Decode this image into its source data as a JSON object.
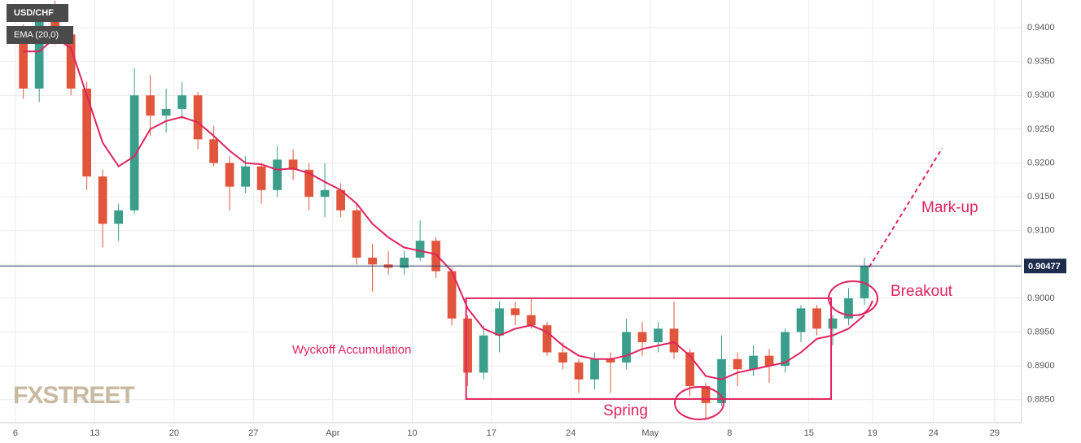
{
  "chart_data": {
    "type": "candlestick",
    "series": [
      {
        "name": "USD/CHF",
        "up_color": "#3a9e8b",
        "down_color": "#e0553c",
        "open": [
          0.939,
          0.931,
          0.942,
          0.939,
          0.931,
          0.918,
          0.911,
          0.913,
          0.93,
          0.927,
          0.928,
          0.93,
          0.9235,
          0.92,
          0.9165,
          0.9195,
          0.916,
          0.9205,
          0.919,
          0.915,
          0.916,
          0.913,
          0.906,
          0.905,
          0.9045,
          0.906,
          0.9085,
          0.904,
          0.897,
          0.889,
          0.8945,
          0.8985,
          0.8975,
          0.896,
          0.892,
          0.8905,
          0.888,
          0.891,
          0.8905,
          0.895,
          0.8935,
          0.8955,
          0.892,
          0.887,
          0.8845,
          0.891,
          0.8895,
          0.8915,
          0.89,
          0.895,
          0.8985,
          0.8955,
          0.897,
          0.9
        ],
        "high": [
          0.9405,
          0.9435,
          0.944,
          0.9395,
          0.932,
          0.919,
          0.914,
          0.934,
          0.933,
          0.931,
          0.932,
          0.9305,
          0.9255,
          0.921,
          0.921,
          0.92,
          0.9225,
          0.922,
          0.92,
          0.92,
          0.917,
          0.914,
          0.908,
          0.907,
          0.907,
          0.9115,
          0.909,
          0.9045,
          0.8975,
          0.896,
          0.8995,
          0.8995,
          0.9,
          0.8965,
          0.8935,
          0.891,
          0.892,
          0.892,
          0.897,
          0.8965,
          0.8965,
          0.8995,
          0.8925,
          0.8875,
          0.8945,
          0.892,
          0.893,
          0.8925,
          0.8955,
          0.899,
          0.899,
          0.8975,
          0.9015,
          0.906
        ],
        "low": [
          0.9295,
          0.929,
          0.9375,
          0.93,
          0.916,
          0.9075,
          0.9085,
          0.9125,
          0.924,
          0.9245,
          0.9265,
          0.922,
          0.9195,
          0.913,
          0.9155,
          0.914,
          0.915,
          0.9175,
          0.913,
          0.912,
          0.912,
          0.905,
          0.901,
          0.9035,
          0.9035,
          0.9055,
          0.903,
          0.896,
          0.887,
          0.888,
          0.892,
          0.896,
          0.8955,
          0.8915,
          0.8895,
          0.886,
          0.8865,
          0.886,
          0.8895,
          0.8915,
          0.892,
          0.891,
          0.8855,
          0.882,
          0.884,
          0.887,
          0.8885,
          0.8875,
          0.889,
          0.8935,
          0.8945,
          0.893,
          0.896,
          0.899
        ],
        "close": [
          0.931,
          0.942,
          0.939,
          0.931,
          0.918,
          0.911,
          0.913,
          0.93,
          0.927,
          0.928,
          0.93,
          0.9235,
          0.92,
          0.9165,
          0.9195,
          0.916,
          0.9205,
          0.919,
          0.915,
          0.916,
          0.913,
          0.906,
          0.905,
          0.9045,
          0.906,
          0.9085,
          0.904,
          0.897,
          0.889,
          0.8945,
          0.8985,
          0.8975,
          0.896,
          0.892,
          0.8905,
          0.888,
          0.891,
          0.8905,
          0.895,
          0.8935,
          0.8955,
          0.892,
          0.887,
          0.8845,
          0.891,
          0.8895,
          0.8915,
          0.89,
          0.895,
          0.8985,
          0.8955,
          0.897,
          0.9,
          0.9048
        ]
      },
      {
        "name": "EMA (20,0)",
        "color": "#e0245e",
        "values": [
          0.9365,
          0.9365,
          0.9385,
          0.937,
          0.93,
          0.923,
          0.9195,
          0.921,
          0.925,
          0.9262,
          0.9268,
          0.926,
          0.924,
          0.9218,
          0.92,
          0.9198,
          0.919,
          0.9192,
          0.9185,
          0.9172,
          0.916,
          0.914,
          0.911,
          0.909,
          0.9075,
          0.907,
          0.9065,
          0.904,
          0.8985,
          0.8955,
          0.8945,
          0.8955,
          0.896,
          0.895,
          0.893,
          0.8915,
          0.891,
          0.891,
          0.8915,
          0.8925,
          0.893,
          0.8935,
          0.8915,
          0.8885,
          0.888,
          0.889,
          0.8895,
          0.89,
          0.8905,
          0.892,
          0.894,
          0.8945,
          0.8955,
          0.8975
        ]
      }
    ],
    "x": [
      0.5,
      1.5,
      2.5,
      3.5,
      4.5,
      5.5,
      6.5,
      7.5,
      8.5,
      9.5,
      10.5,
      11.5,
      12.5,
      13.5,
      14.5,
      15.5,
      16.5,
      17.5,
      18.5,
      19.5,
      20.5,
      21.5,
      22.5,
      23.5,
      24.5,
      25.5,
      26.5,
      27.5,
      28.5,
      29.5,
      30.5,
      31.5,
      32.5,
      33.5,
      34.5,
      35.5,
      36.5,
      37.5,
      38.5,
      39.5,
      40.5,
      41.5,
      42.5,
      43.5,
      44.5,
      45.5,
      46.5,
      47.5,
      48.5,
      49.5,
      50.5,
      51.5,
      52.5,
      53.5
    ],
    "xlim": [
      -0.97,
      63.4
    ],
    "xticks": [
      {
        "value": 0,
        "label": "6"
      },
      {
        "value": 5,
        "label": "13"
      },
      {
        "value": 10,
        "label": "20"
      },
      {
        "value": 15,
        "label": "27"
      },
      {
        "value": 20,
        "label": "Apr"
      },
      {
        "value": 25,
        "label": "10"
      },
      {
        "value": 30,
        "label": "17"
      },
      {
        "value": 35,
        "label": "24"
      },
      {
        "value": 40,
        "label": "May"
      },
      {
        "value": 45,
        "label": "8"
      },
      {
        "value": 50,
        "label": "15"
      },
      {
        "value": 54,
        "label": "19"
      },
      {
        "value": 57.85,
        "label": "24"
      },
      {
        "value": 61.7,
        "label": "29"
      }
    ],
    "ylim": [
      0.8816,
      0.9441
    ],
    "yticks": [
      {
        "value": 0.885,
        "label": "0.8850"
      },
      {
        "value": 0.89,
        "label": "0.8900"
      },
      {
        "value": 0.895,
        "label": "0.8950"
      },
      {
        "value": 0.9,
        "label": "0.9000"
      },
      {
        "value": 0.905,
        "label": "0.9050"
      },
      {
        "value": 0.91,
        "label": "0.9100"
      },
      {
        "value": 0.915,
        "label": "0.9150"
      },
      {
        "value": 0.92,
        "label": "0.9200"
      },
      {
        "value": 0.925,
        "label": "0.9250"
      },
      {
        "value": 0.93,
        "label": "0.9300"
      },
      {
        "value": 0.935,
        "label": "0.9350"
      },
      {
        "value": 0.94,
        "label": "0.9400"
      }
    ],
    "grid": true,
    "last_price": {
      "value": 0.90477,
      "label": "0.90477"
    },
    "range_box": {
      "x": [
        28.4,
        51.4
      ],
      "y": [
        0.9,
        0.8851
      ]
    },
    "projection": {
      "x": [
        53.8,
        58.4
      ],
      "y": [
        0.9046,
        0.9222
      ]
    },
    "annotations": {
      "range": "Wyckoff Accumulation",
      "spring": "Spring",
      "breakout": "Breakout",
      "markup": "Mark-up"
    },
    "logo": "FXSTREET"
  }
}
